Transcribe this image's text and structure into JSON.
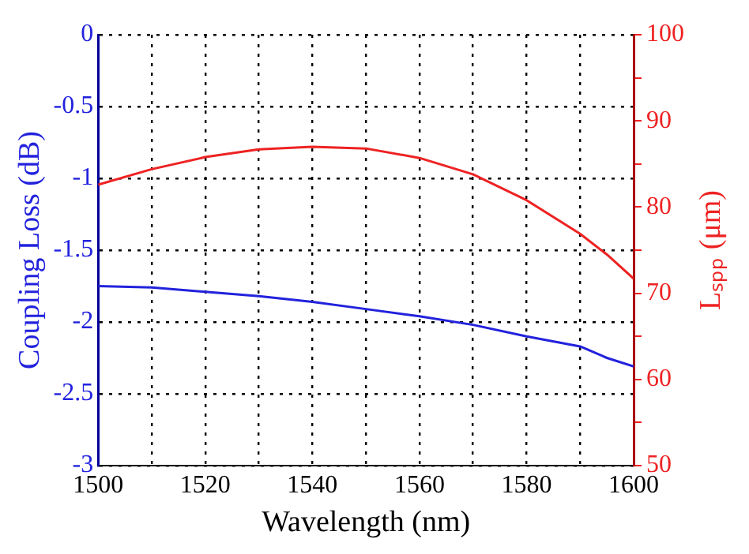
{
  "chart_data": {
    "type": "line",
    "xlabel": "Wavelength (nm)",
    "ylabel": "Coupling Loss (dB)",
    "y2label": "Lₛₚₚ (μm)",
    "x": [
      1500,
      1510,
      1520,
      1530,
      1540,
      1550,
      1560,
      1570,
      1580,
      1590,
      1595,
      1600
    ],
    "series": [
      {
        "color": "#2222dd",
        "values": [
          -1.75,
          -1.76,
          -1.79,
          -1.82,
          -1.86,
          -1.91,
          -1.96,
          -2.02,
          -2.1,
          -2.17,
          -2.25,
          -2.31
        ]
      },
      {
        "color": "#ee2222",
        "axis": "y2",
        "values": [
          82.6,
          84.4,
          85.8,
          86.7,
          87.0,
          86.8,
          85.7,
          83.8,
          80.8,
          76.9,
          74.5,
          71.7
        ]
      }
    ],
    "xlim": [
      1500,
      1600
    ],
    "xticks": [
      1500,
      1520,
      1540,
      1560,
      1580,
      1600
    ],
    "ylim": [
      -3,
      0
    ],
    "yticks": [
      -3,
      -2.5,
      -2,
      -1.5,
      -1,
      -0.5,
      0
    ],
    "y2lim": [
      50,
      100
    ],
    "y2ticks": [
      50,
      {
        "value": 55,
        "label": null
      },
      60,
      {
        "value": 65,
        "label": null
      },
      70,
      {
        "value": 75,
        "label": null
      },
      80,
      {
        "value": 85,
        "label": null
      },
      90,
      {
        "value": 95,
        "label": null
      },
      100
    ],
    "grid": true,
    "legend": false,
    "marker": "none",
    "line_style": "solid"
  }
}
